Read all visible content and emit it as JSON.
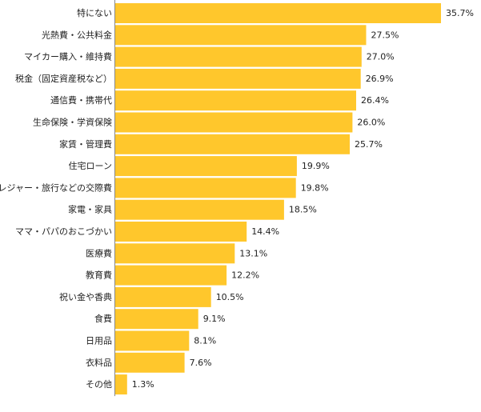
{
  "chart_data": {
    "type": "bar",
    "orientation": "horizontal",
    "title": "",
    "xlabel": "",
    "ylabel": "",
    "value_suffix": "%",
    "xlim": [
      0,
      35.7
    ],
    "grid": false,
    "legend": "none",
    "bar_color": "#FFC72C",
    "categories": [
      "特にない",
      "光熱費・公共料金",
      "マイカー購入・維持費",
      "税金（固定資産税など）",
      "通信費・携帯代",
      "生命保険・学資保険",
      "家賃・管理費",
      "住宅ローン",
      "レジャー・旅行などの交際費",
      "家電・家具",
      "ママ・パパのおこづかい",
      "医療費",
      "教育費",
      "祝い金や香典",
      "食費",
      "日用品",
      "衣料品",
      "その他"
    ],
    "values": [
      35.7,
      27.5,
      27.0,
      26.9,
      26.4,
      26.0,
      25.7,
      19.9,
      19.8,
      18.5,
      14.4,
      13.1,
      12.2,
      10.5,
      9.1,
      8.1,
      7.6,
      1.3
    ],
    "value_labels": [
      "35.7%",
      "27.5%",
      "27.0%",
      "26.9%",
      "26.4%",
      "26.0%",
      "25.7%",
      "19.9%",
      "19.8%",
      "18.5%",
      "14.4%",
      "13.1%",
      "12.2%",
      "10.5%",
      "9.1%",
      "8.1%",
      "7.6%",
      "1.3%"
    ]
  }
}
